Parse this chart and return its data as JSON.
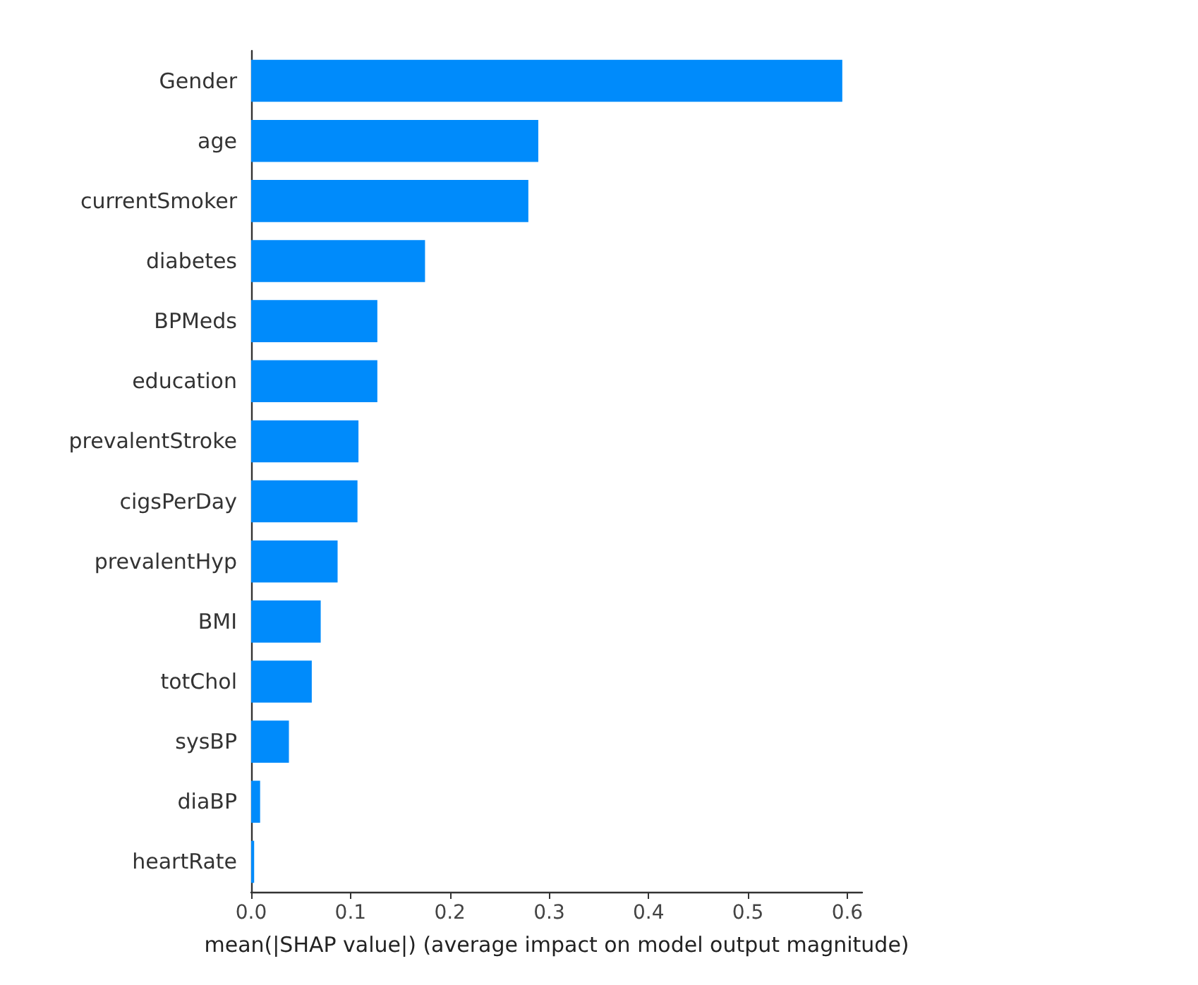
{
  "chart_data": {
    "type": "bar",
    "orientation": "horizontal",
    "categories": [
      "Gender",
      "age",
      "currentSmoker",
      "diabetes",
      "BPMeds",
      "education",
      "prevalentStroke",
      "cigsPerDay",
      "prevalentHyp",
      "BMI",
      "totChol",
      "sysBP",
      "diaBP",
      "heartRate"
    ],
    "values": [
      0.595,
      0.289,
      0.279,
      0.175,
      0.127,
      0.127,
      0.108,
      0.107,
      0.087,
      0.07,
      0.061,
      0.038,
      0.009,
      0.003
    ],
    "color": "#008bfb",
    "xlabel": "mean(|SHAP value|) (average impact on model output magnitude)",
    "xlim": [
      0,
      0.615
    ],
    "xticks": [
      {
        "value": 0,
        "label": "0.0"
      },
      {
        "value": 0.1,
        "label": "0.1"
      },
      {
        "value": 0.2,
        "label": "0.2"
      },
      {
        "value": 0.3,
        "label": "0.3"
      },
      {
        "value": 0.4,
        "label": "0.4"
      },
      {
        "value": 0.5,
        "label": "0.5"
      },
      {
        "value": 0.6,
        "label": "0.6"
      }
    ],
    "grid": false
  }
}
